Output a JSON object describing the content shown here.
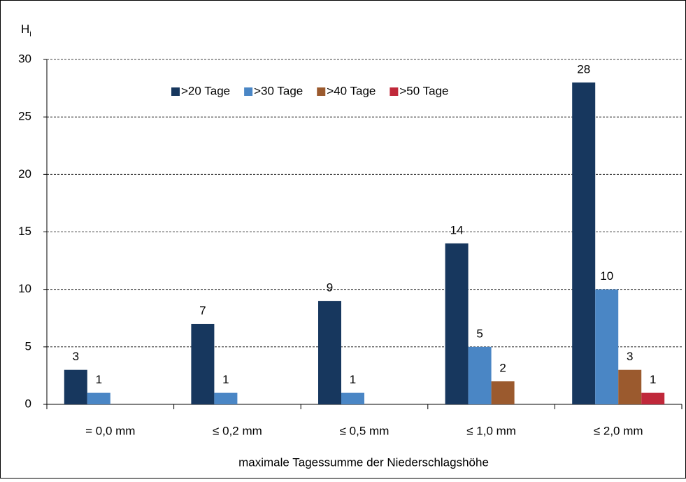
{
  "chart_data": {
    "type": "bar",
    "ylabel": {
      "text": "H",
      "subscript": "i"
    },
    "xlabel": "maximale Tagessumme der Niederschlagshöhe",
    "categories": [
      "= 0,0 mm",
      "≤ 0,2 mm",
      "≤ 0,5 mm",
      "≤ 1,0 mm",
      "≤ 2,0 mm"
    ],
    "series": [
      {
        "name": ">20 Tage",
        "color": "#17375e",
        "values": [
          3,
          7,
          9,
          14,
          28
        ]
      },
      {
        "name": ">30 Tage",
        "color": "#4a86c5",
        "values": [
          1,
          1,
          1,
          5,
          10
        ]
      },
      {
        "name": ">40 Tage",
        "color": "#9b5a2e",
        "values": [
          null,
          null,
          null,
          2,
          3
        ]
      },
      {
        "name": ">50 Tage",
        "color": "#c0283a",
        "values": [
          null,
          null,
          null,
          null,
          1
        ]
      }
    ],
    "ylim": [
      0,
      30
    ],
    "yticks": [
      0,
      5,
      10,
      15,
      20,
      25,
      30
    ],
    "grid": true,
    "legend": "top"
  }
}
